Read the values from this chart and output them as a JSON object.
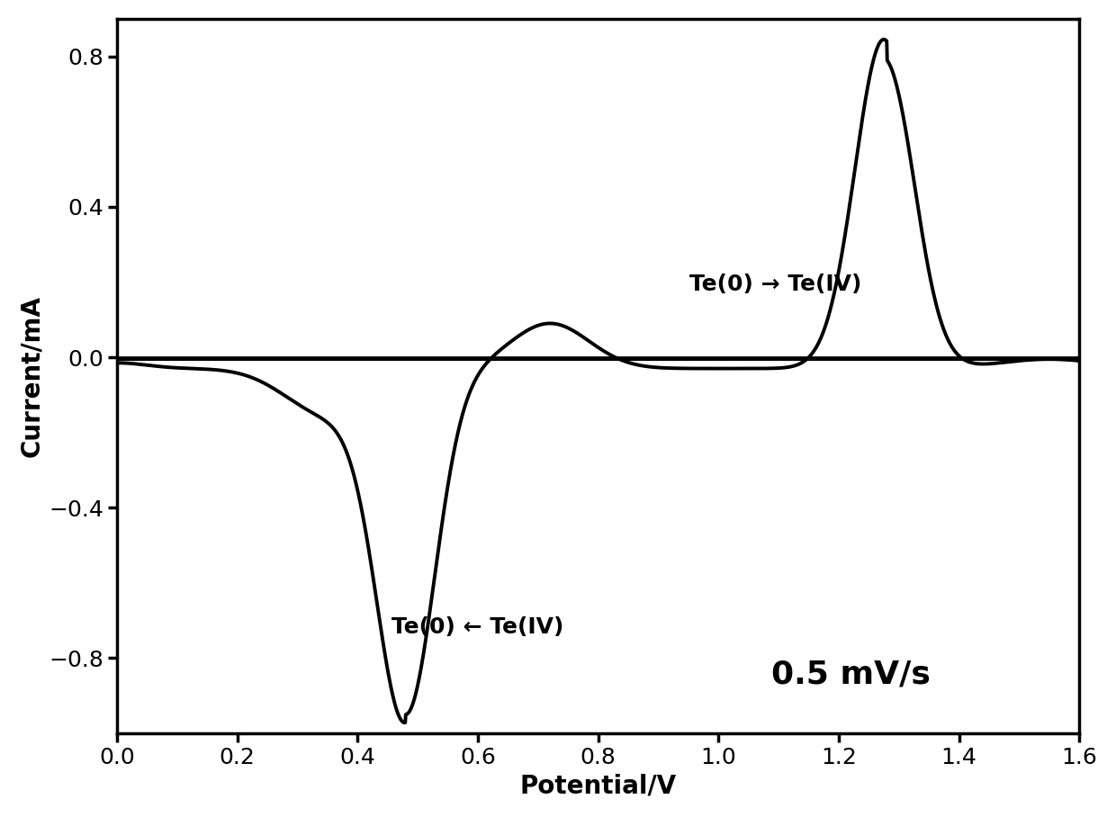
{
  "title": "",
  "xlabel": "Potential/V",
  "ylabel": "Current/mA",
  "xlim": [
    0.0,
    1.6
  ],
  "ylim": [
    -1.0,
    0.9
  ],
  "xticks": [
    0.0,
    0.2,
    0.4,
    0.6,
    0.8,
    1.0,
    1.2,
    1.4,
    1.6
  ],
  "yticks": [
    -0.8,
    -0.4,
    0.0,
    0.4,
    0.8
  ],
  "annotation_oxidation": "Te(0) → Te(IV)",
  "annotation_reduction": "Te(0) ← Te(IV)",
  "annotation_rate": "0.5 mV/s",
  "line_color": "#000000",
  "line_width": 2.8,
  "background_color": "#ffffff",
  "xlabel_fontsize": 20,
  "ylabel_fontsize": 20,
  "tick_fontsize": 18,
  "annotation_fontsize": 18,
  "rate_fontsize": 26
}
